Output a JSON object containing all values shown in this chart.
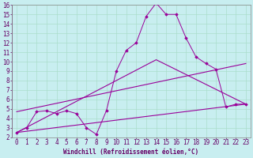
{
  "bg_color": "#c8eef0",
  "grid_color": "#aaddcc",
  "line_color": "#990099",
  "marker_color": "#990099",
  "xlabel": "Windchill (Refroidissement éolien,°C)",
  "xlim": [
    -0.5,
    23.5
  ],
  "ylim": [
    2,
    16
  ],
  "xticks": [
    0,
    1,
    2,
    3,
    4,
    5,
    6,
    7,
    8,
    9,
    10,
    11,
    12,
    13,
    14,
    15,
    16,
    17,
    18,
    19,
    20,
    21,
    22,
    23
  ],
  "yticks": [
    2,
    3,
    4,
    5,
    6,
    7,
    8,
    9,
    10,
    11,
    12,
    13,
    14,
    15,
    16
  ],
  "series1_x": [
    0,
    1,
    2,
    3,
    4,
    5,
    6,
    7,
    8,
    9,
    10,
    11,
    12,
    13,
    14,
    15,
    16,
    17,
    18,
    19,
    20,
    21,
    22,
    23
  ],
  "series1_y": [
    2.5,
    3.0,
    4.7,
    4.8,
    4.5,
    4.8,
    4.5,
    3.0,
    2.3,
    4.8,
    9.0,
    11.2,
    12.0,
    14.8,
    16.2,
    15.0,
    15.0,
    12.5,
    10.5,
    9.8,
    9.2,
    5.2,
    5.5,
    5.5
  ],
  "series2_x": [
    0,
    23
  ],
  "series2_y": [
    2.5,
    5.5
  ],
  "series3_x": [
    0,
    14,
    23
  ],
  "series3_y": [
    2.5,
    10.2,
    5.5
  ],
  "series4_x": [
    0,
    23
  ],
  "series4_y": [
    4.7,
    9.8
  ],
  "font_size": 5.5,
  "tick_font_size": 5.5,
  "xlabel_font_size": 5.5
}
